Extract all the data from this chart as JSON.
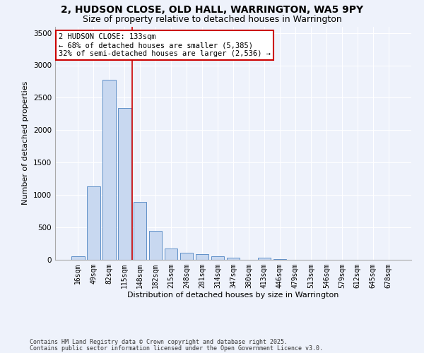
{
  "title_line1": "2, HUDSON CLOSE, OLD HALL, WARRINGTON, WA5 9PY",
  "title_line2": "Size of property relative to detached houses in Warrington",
  "xlabel": "Distribution of detached houses by size in Warrington",
  "ylabel": "Number of detached properties",
  "categories": [
    "16sqm",
    "49sqm",
    "82sqm",
    "115sqm",
    "148sqm",
    "182sqm",
    "215sqm",
    "248sqm",
    "281sqm",
    "314sqm",
    "347sqm",
    "380sqm",
    "413sqm",
    "446sqm",
    "479sqm",
    "513sqm",
    "546sqm",
    "579sqm",
    "612sqm",
    "645sqm",
    "678sqm"
  ],
  "values": [
    50,
    1130,
    2780,
    2340,
    890,
    440,
    165,
    100,
    80,
    50,
    30,
    0,
    25,
    10,
    0,
    0,
    0,
    0,
    0,
    0,
    0
  ],
  "bar_color": "#c8d8f0",
  "bar_edge_color": "#6090c8",
  "vline_x": 3.5,
  "vline_color": "#cc0000",
  "annotation_text": "2 HUDSON CLOSE: 133sqm\n← 68% of detached houses are smaller (5,385)\n32% of semi-detached houses are larger (2,536) →",
  "annotation_box_color": "#ffffff",
  "annotation_box_edge": "#cc0000",
  "ylim": [
    0,
    3600
  ],
  "yticks": [
    0,
    500,
    1000,
    1500,
    2000,
    2500,
    3000,
    3500
  ],
  "background_color": "#eef2fb",
  "grid_color": "#ffffff",
  "footer_line1": "Contains HM Land Registry data © Crown copyright and database right 2025.",
  "footer_line2": "Contains public sector information licensed under the Open Government Licence v3.0.",
  "title_fontsize": 10,
  "subtitle_fontsize": 9,
  "label_fontsize": 8,
  "tick_fontsize": 7,
  "annot_fontsize": 7.5,
  "footer_fontsize": 6
}
